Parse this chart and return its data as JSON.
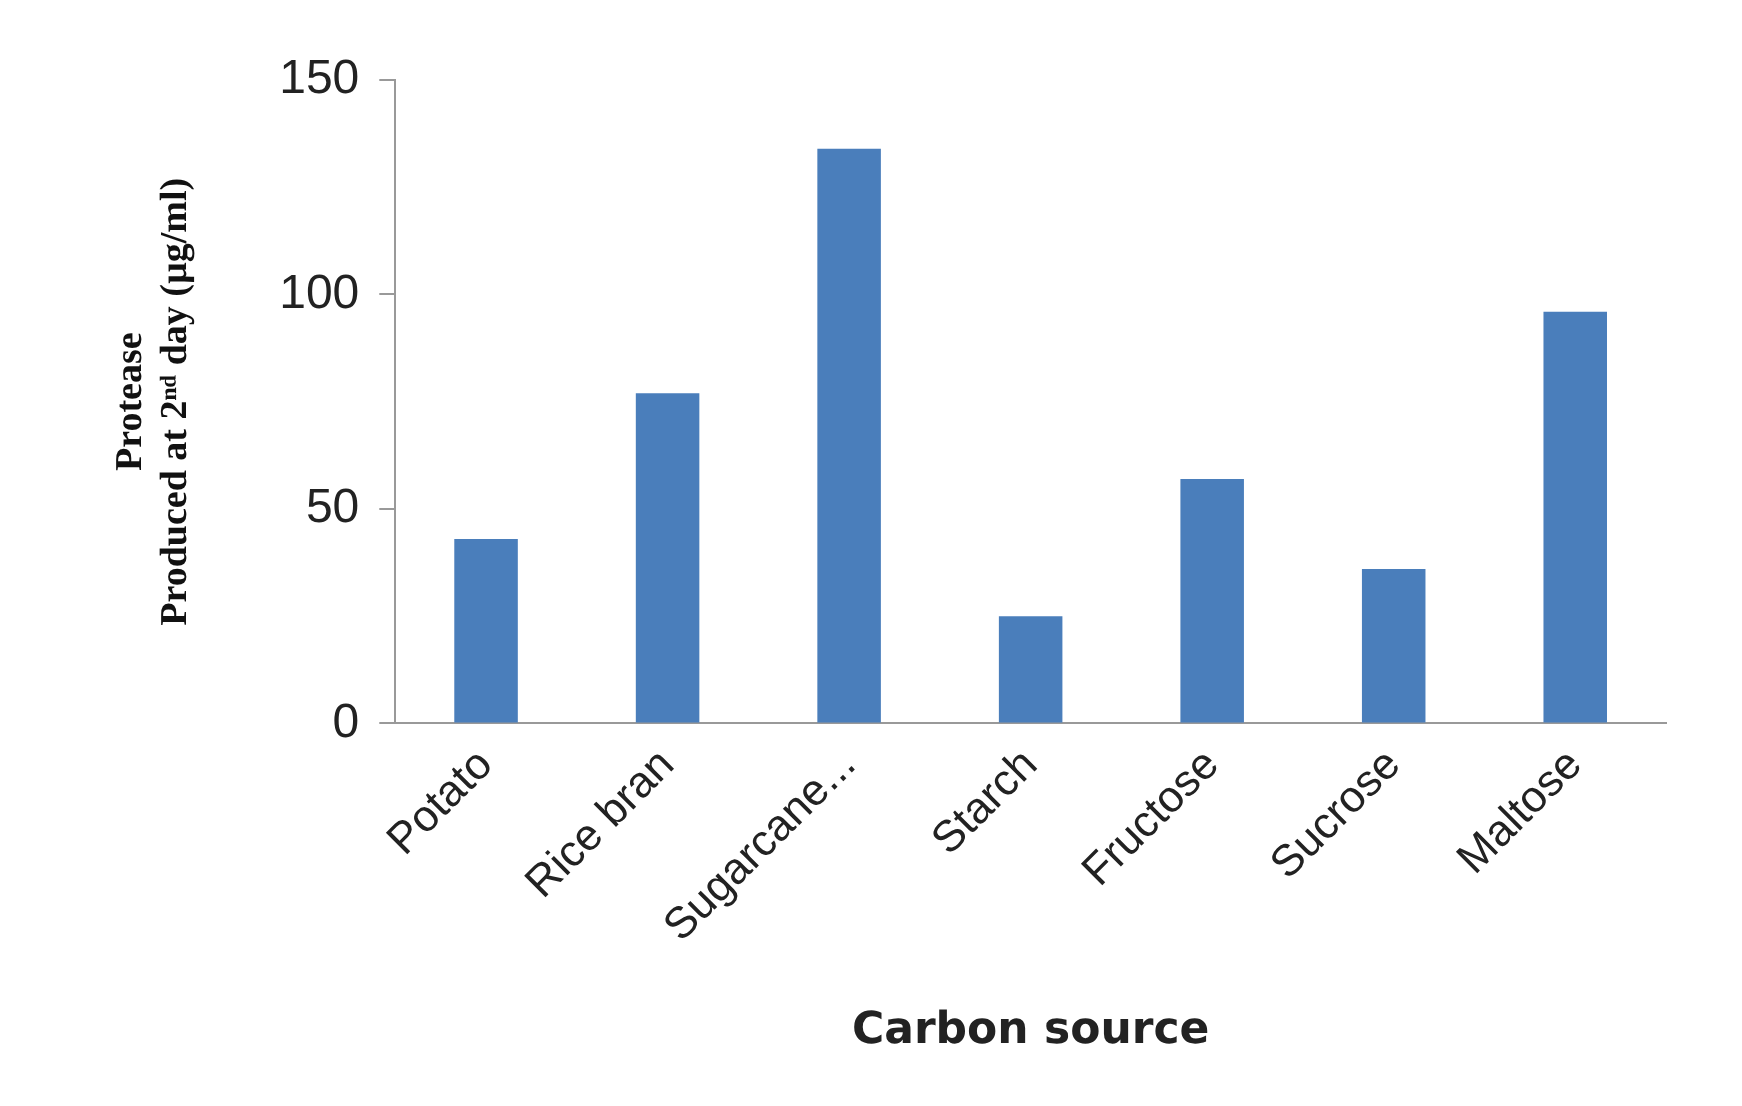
{
  "chart_data": {
    "type": "bar",
    "xlabel": "Carbon source",
    "ylabel": "Protease\nProduced at 2ⁿᵈ day (µg/ml)",
    "categories": [
      "Potato",
      "Rice bran",
      "Sugarcane...",
      "Starch",
      "Fructose",
      "Sucrose",
      "Maltose"
    ],
    "values": [
      43,
      77,
      134,
      25,
      57,
      36,
      96
    ],
    "color": "#4a7ebb",
    "ylim": [
      0,
      150
    ],
    "yticks": [
      0,
      50,
      100,
      150
    ],
    "grid": false,
    "legend": false
  }
}
